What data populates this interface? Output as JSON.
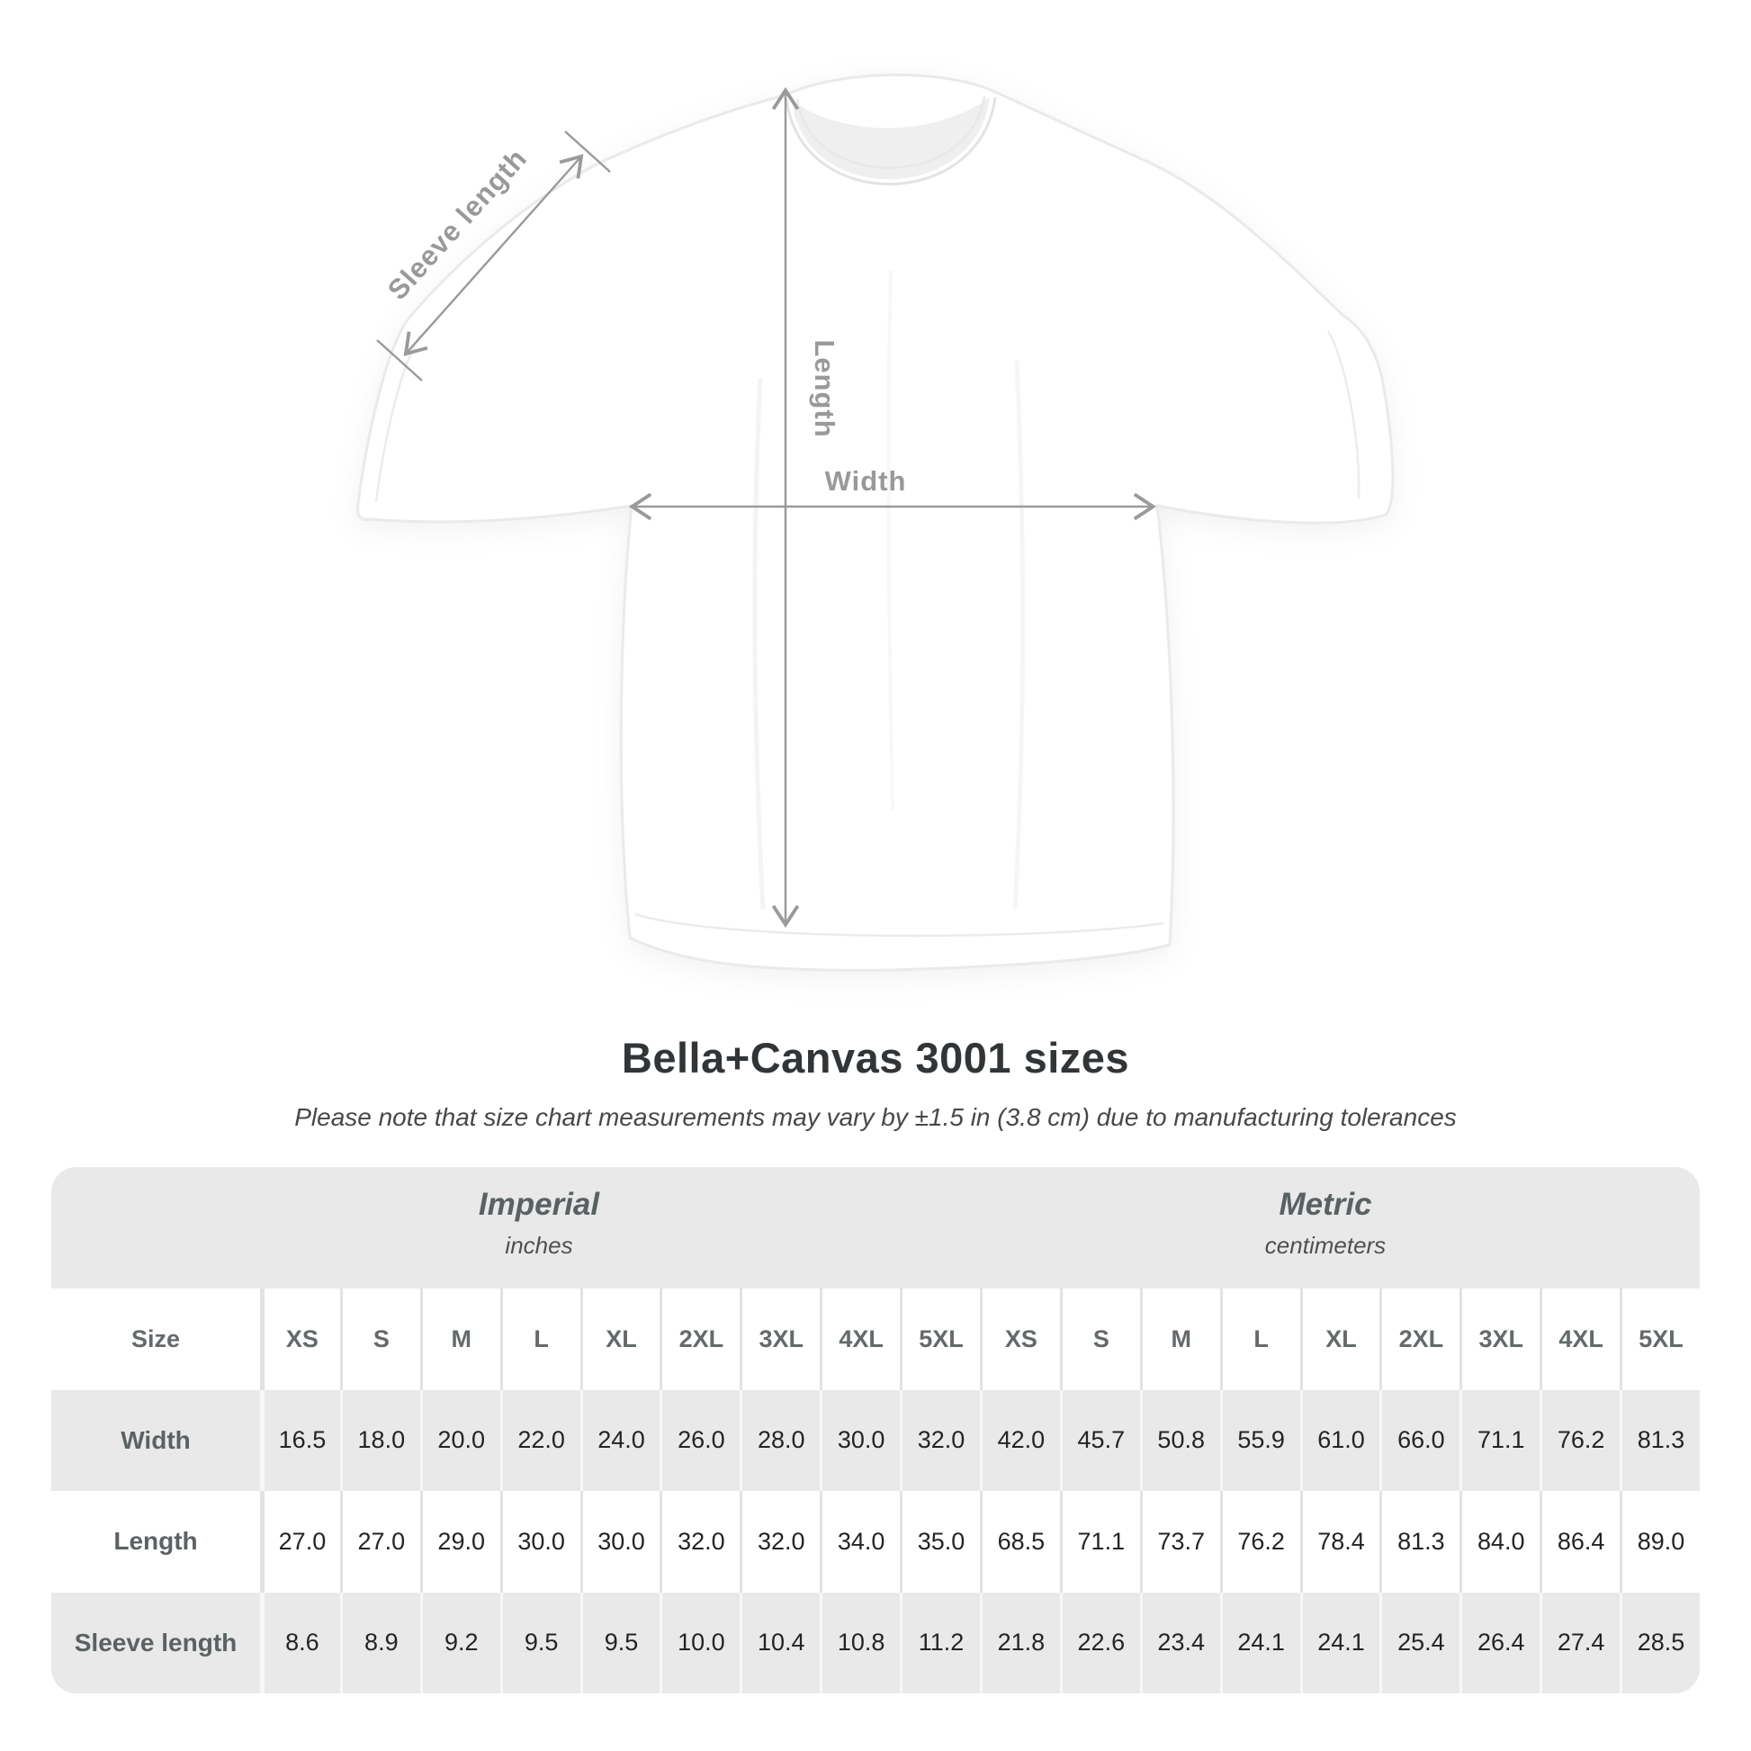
{
  "diagram": {
    "labels": {
      "sleeve": "Sleeve length",
      "length": "Length",
      "width": "Width"
    }
  },
  "title": "Bella+Canvas 3001 sizes",
  "subtitle": "Please note that size chart measurements may vary by ±1.5 in (3.8 cm) due to manufacturing tolerances",
  "table": {
    "imperial_header": {
      "title": "Imperial",
      "subtitle": "inches"
    },
    "metric_header": {
      "title": "Metric",
      "subtitle": "centimeters"
    },
    "size_label": "Size",
    "sizes": [
      "XS",
      "S",
      "M",
      "L",
      "XL",
      "2XL",
      "3XL",
      "4XL",
      "5XL"
    ],
    "rows": [
      {
        "label": "Width",
        "imperial": [
          "16.5",
          "18.0",
          "20.0",
          "22.0",
          "24.0",
          "26.0",
          "28.0",
          "30.0",
          "32.0"
        ],
        "metric": [
          "42.0",
          "45.7",
          "50.8",
          "55.9",
          "61.0",
          "66.0",
          "71.1",
          "76.2",
          "81.3"
        ]
      },
      {
        "label": "Length",
        "imperial": [
          "27.0",
          "27.0",
          "29.0",
          "30.0",
          "30.0",
          "32.0",
          "32.0",
          "34.0",
          "35.0"
        ],
        "metric": [
          "68.5",
          "71.1",
          "73.7",
          "76.2",
          "78.4",
          "81.3",
          "84.0",
          "86.4",
          "89.0"
        ]
      },
      {
        "label": "Sleeve length",
        "imperial": [
          "8.6",
          "8.9",
          "9.2",
          "9.5",
          "9.5",
          "10.0",
          "10.4",
          "10.8",
          "11.2"
        ],
        "metric": [
          "21.8",
          "22.6",
          "23.4",
          "24.1",
          "24.1",
          "25.4",
          "26.4",
          "27.4",
          "28.5"
        ]
      }
    ]
  },
  "colors": {
    "panel_background": "#e9e9e9",
    "annotation_gray": "#9a9a9a",
    "title_text": "#323537"
  },
  "chart_data": {
    "type": "table",
    "title": "Bella+Canvas 3001 sizes",
    "note": "Please note that size chart measurements may vary by ±1.5 in (3.8 cm) due to manufacturing tolerances",
    "units": {
      "imperial": "inches",
      "metric": "centimeters"
    },
    "sizes": [
      "XS",
      "S",
      "M",
      "L",
      "XL",
      "2XL",
      "3XL",
      "4XL",
      "5XL"
    ],
    "measurements": {
      "width_in": [
        16.5,
        18.0,
        20.0,
        22.0,
        24.0,
        26.0,
        28.0,
        30.0,
        32.0
      ],
      "length_in": [
        27.0,
        27.0,
        29.0,
        30.0,
        30.0,
        32.0,
        32.0,
        34.0,
        35.0
      ],
      "sleeve_length_in": [
        8.6,
        8.9,
        9.2,
        9.5,
        9.5,
        10.0,
        10.4,
        10.8,
        11.2
      ],
      "width_cm": [
        42.0,
        45.7,
        50.8,
        55.9,
        61.0,
        66.0,
        71.1,
        76.2,
        81.3
      ],
      "length_cm": [
        68.5,
        71.1,
        73.7,
        76.2,
        78.4,
        81.3,
        84.0,
        86.4,
        89.0
      ],
      "sleeve_length_cm": [
        21.8,
        22.6,
        23.4,
        24.1,
        24.1,
        25.4,
        26.4,
        27.4,
        28.5
      ]
    }
  }
}
